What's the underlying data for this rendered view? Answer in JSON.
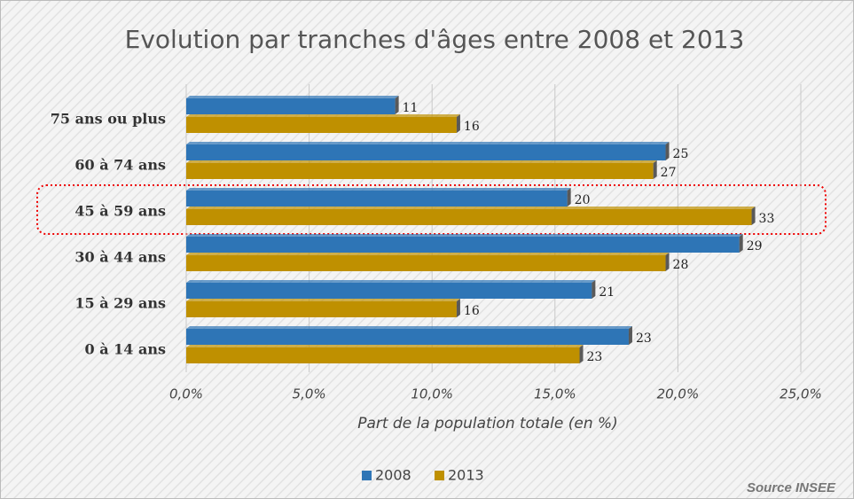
{
  "chart_data": {
    "type": "hbar",
    "title": "Evolution par tranches d'âges entre 2008 et 2013",
    "x_label": "Part de la population totale (en %)",
    "source": "Source INSEE",
    "categories": [
      "75 ans ou plus",
      "60 à 74 ans",
      "45 à 59 ans",
      "30 à 44 ans",
      "15 à 29 ans",
      "0 à 14 ans"
    ],
    "series": [
      {
        "name": "2008",
        "color": "#2e75b6",
        "values": [
          8.5,
          19.5,
          15.5,
          22.5,
          16.5,
          18
        ],
        "labels": [
          11,
          25,
          20,
          29,
          21,
          23
        ]
      },
      {
        "name": "2013",
        "color": "#bf9000",
        "values": [
          11,
          19,
          23,
          19.5,
          11,
          16
        ],
        "labels": [
          16,
          27,
          33,
          28,
          16,
          23
        ]
      }
    ],
    "xlim": [
      0,
      25
    ],
    "xticks": [
      {
        "value": 0,
        "label": "0,0%"
      },
      {
        "value": 5,
        "label": "5,0%"
      },
      {
        "value": 10,
        "label": "10,0%"
      },
      {
        "value": 15,
        "label": "15,0%"
      },
      {
        "value": 20,
        "label": "20,0%"
      },
      {
        "value": 25,
        "label": "25,0%"
      }
    ],
    "grid": true,
    "legend": "bottom"
  }
}
